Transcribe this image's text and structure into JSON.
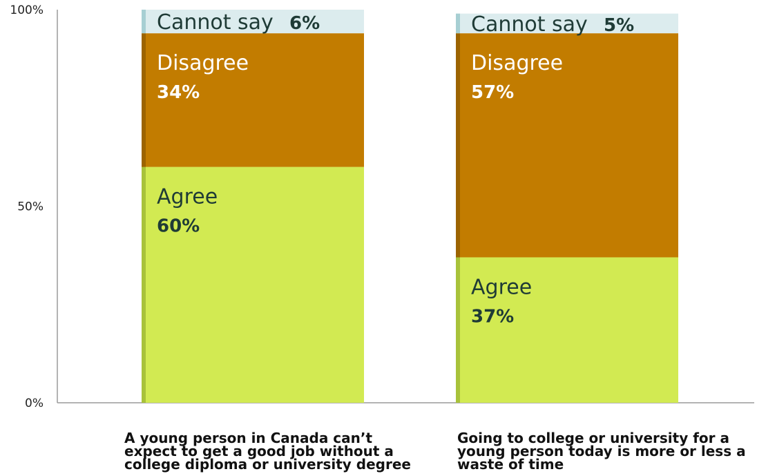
{
  "chart_data": {
    "type": "bar",
    "stacked": true,
    "orientation": "vertical",
    "y_ticks": [
      "0%",
      "50%",
      "100%"
    ],
    "ylim": [
      0,
      100
    ],
    "categories": [
      "A young person in Canada can’t expect to get a good job without a college diploma or university degree",
      "Going to college or university for a young person today is more or less a waste of time"
    ],
    "series": [
      {
        "name": "Agree",
        "values": [
          60,
          37
        ],
        "labels": [
          "60%",
          "37%"
        ],
        "color": "#d2ea52",
        "edge_color": "#a8c23a"
      },
      {
        "name": "Disagree",
        "values": [
          34,
          57
        ],
        "labels": [
          "34%",
          "57%"
        ],
        "color": "#c27c00",
        "edge_color": "#9c6400"
      },
      {
        "name": "Cannot say",
        "values": [
          6,
          5
        ],
        "labels": [
          "6%",
          "5%"
        ],
        "color": "#dcecee",
        "edge_color": "#a7cfd3"
      }
    ]
  }
}
